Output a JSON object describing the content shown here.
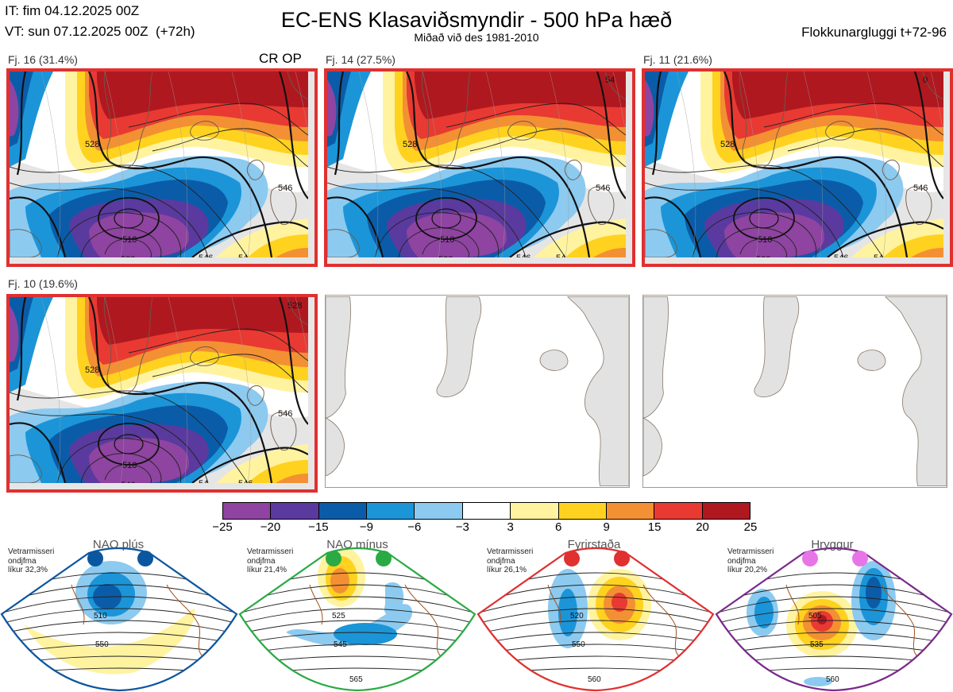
{
  "header": {
    "it": "IT: fim 04.12.2025 00Z",
    "vt": "VT: sun 07.12.2025 00Z  (+72h)",
    "title": "EC-ENS Klasaviðsmyndir - 500 hPa hæð",
    "subtitle": "Miðað við des 1981-2010",
    "window": "Flokkunargluggi t+72-96"
  },
  "panels": [
    {
      "label": "Fj. 16 (31.4%)",
      "tag": "CR OP",
      "highlighted": true,
      "contours": [
        "510",
        "528",
        "528",
        "546",
        "546",
        "54"
      ]
    },
    {
      "label": "Fj. 14 (27.5%)",
      "highlighted": true,
      "contours": [
        "510",
        "528",
        "528",
        "546",
        "546",
        "54",
        "54"
      ]
    },
    {
      "label": "Fj. 11 (21.6%)",
      "highlighted": true,
      "contours": [
        "510",
        "528",
        "528",
        "546",
        "546",
        "54",
        "0"
      ]
    },
    {
      "label": "Fj. 10 (19.6%)",
      "highlighted": true,
      "contours": [
        "510",
        "528",
        "546",
        "546",
        "54",
        "546",
        "528"
      ]
    },
    {
      "label": "",
      "highlighted": false
    },
    {
      "label": "",
      "highlighted": false
    }
  ],
  "colorbar": {
    "ticks": [
      "−25",
      "−20",
      "−15",
      "−9",
      "−6",
      "−3",
      "3",
      "6",
      "9",
      "15",
      "20",
      "25"
    ],
    "colors": [
      "#8e44a0",
      "#5a3a9e",
      "#0b5ca8",
      "#1b95d8",
      "#8ccaf0",
      "#ffffff",
      "#fff3a0",
      "#ffd21f",
      "#f39033",
      "#e83a32",
      "#b01820"
    ]
  },
  "regimes": [
    {
      "name": "NAO plús",
      "info1": "Vetrarmisseri",
      "info2": "ondjfma",
      "info3": "líkur 32,3%",
      "frame_color": "#0b56a0",
      "dot_color": "#0b56a0",
      "contours": [
        "510",
        "550"
      ]
    },
    {
      "name": "NAO mínus",
      "info1": "Vetrarmisseri",
      "info2": "ondjfma",
      "info3": "líkur 21,4%",
      "frame_color": "#2aaa45",
      "dot_color": "#2aaa45",
      "contours": [
        "525",
        "545",
        "565"
      ]
    },
    {
      "name": "Fyrirstaða",
      "info1": "Vetrarmisseri",
      "info2": "ondjfma",
      "info3": "líkur 26,1%",
      "frame_color": "#e03030",
      "dot_color": "#e03030",
      "contours": [
        "520",
        "550",
        "560"
      ]
    },
    {
      "name": "Hryggur",
      "info1": "Vetrarmisseri",
      "info2": "ondjfma",
      "info3": "líkur 20,2%",
      "frame_color": "#7a2a8a",
      "dot_color": "#e875e8",
      "contours": [
        "505",
        "535",
        "560"
      ]
    }
  ]
}
